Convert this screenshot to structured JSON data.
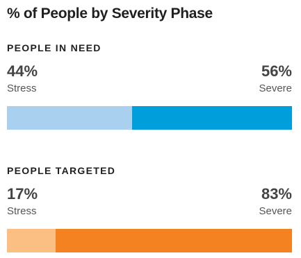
{
  "title": "% of People by Severity Phase",
  "chart_data": [
    {
      "type": "bar",
      "orientation": "horizontal-stacked",
      "label": "PEOPLE IN NEED",
      "segments": [
        {
          "name": "Stress",
          "value": 44,
          "display": "44%",
          "color": "#a9d0ee"
        },
        {
          "name": "Severe",
          "value": 56,
          "display": "56%",
          "color": "#009fdb"
        }
      ]
    },
    {
      "type": "bar",
      "orientation": "horizontal-stacked",
      "label": "PEOPLE TARGETED",
      "segments": [
        {
          "name": "Stress",
          "value": 17,
          "display": "17%",
          "color": "#fbbf83"
        },
        {
          "name": "Severe",
          "value": 83,
          "display": "83%",
          "color": "#f58220"
        }
      ]
    }
  ]
}
